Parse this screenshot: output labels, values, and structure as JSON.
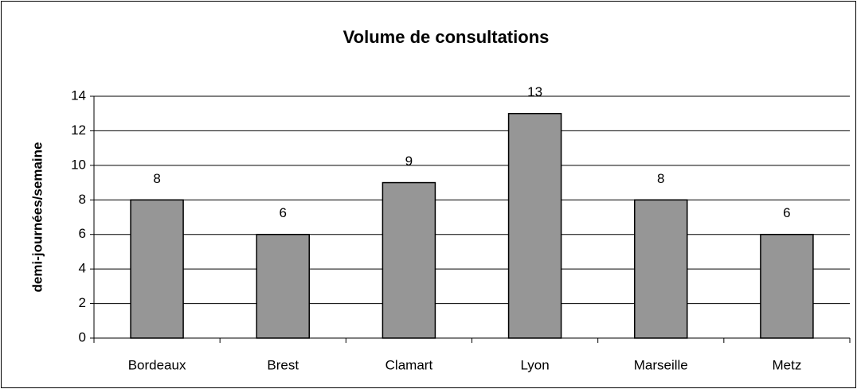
{
  "chart_data": {
    "type": "bar",
    "title": "Volume de consultations",
    "y_label": "demi-journées/semaine",
    "categories": [
      "Bordeaux",
      "Brest",
      "Clamart",
      "Lyon",
      "Marseille",
      "Metz"
    ],
    "values": [
      8,
      6,
      9,
      13,
      8,
      6
    ],
    "color": "#969696",
    "ylim": [
      0,
      14
    ],
    "yticks": [
      0,
      2,
      4,
      6,
      8,
      10,
      12,
      14
    ],
    "grid": true
  }
}
